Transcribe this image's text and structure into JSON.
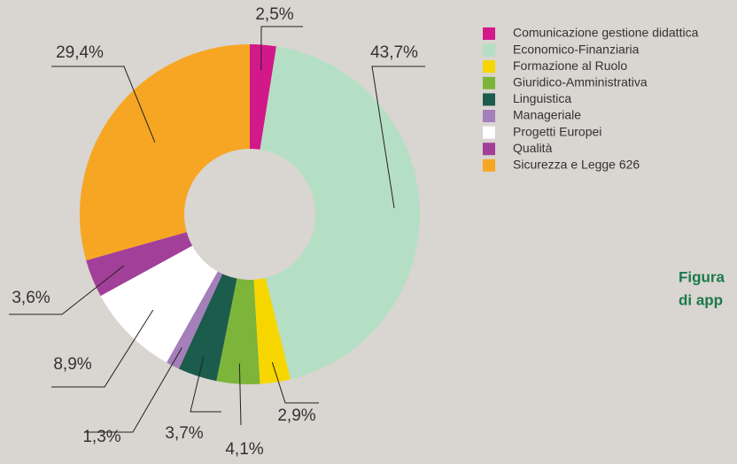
{
  "chart_data": {
    "type": "donut",
    "categories": [
      "Comunicazione gestione didattica",
      "Economico-Finanziaria",
      "Formazione al Ruolo",
      "Giuridico-Amministrativa",
      "Linguistica",
      "Manageriale",
      "Progetti Europei",
      "Qualità",
      "Sicurezza e Legge 626"
    ],
    "values": [
      2.5,
      43.7,
      2.9,
      4.1,
      3.7,
      1.3,
      8.9,
      3.6,
      29.4
    ],
    "value_labels": [
      "2,5%",
      "43,7%",
      "2,9%",
      "4,1%",
      "3,7%",
      "1,3%",
      "8,9%",
      "3,6%",
      "29,4%"
    ],
    "colors": [
      "#d3198a",
      "#b5dfc4",
      "#f7d600",
      "#7db43a",
      "#1b5c4c",
      "#a47fba",
      "#ffffff",
      "#a23f98",
      "#f6a623"
    ],
    "legend": "top-right",
    "annotations": [
      "Figura",
      "di app"
    ]
  }
}
